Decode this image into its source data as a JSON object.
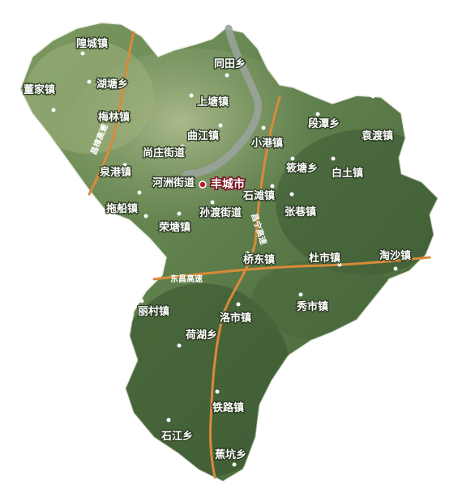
{
  "colors": {
    "terrain_dark": "#3f5e36",
    "terrain_mid": "#6b8a55",
    "terrain_light": "#a9b98a",
    "river": "#9aa39c",
    "road": "#d98a3a",
    "city_marker": "#c0182d",
    "background": "#ffffff"
  },
  "city": {
    "name": "丰城市"
  },
  "towns": [
    "隍城镇",
    "董家镇",
    "湖塘乡",
    "梅林镇",
    "同田乡",
    "上塘镇",
    "曲江镇",
    "尚庄街道",
    "泉港镇",
    "河洲街道",
    "小港镇",
    "段潭乡",
    "袁渡镇",
    "筱塘乡",
    "白土镇",
    "石滩镇",
    "张巷镇",
    "拖船镇",
    "孙渡街道",
    "荣塘镇",
    "桥东镇",
    "杜市镇",
    "淘沙镇",
    "丽村镇",
    "洛市镇",
    "秀市镇",
    "荷湖乡",
    "铁路镇",
    "石江乡",
    "蕉坑乡"
  ],
  "highways": [
    "东昌高速",
    "昌宁高速",
    "昌樟高速"
  ]
}
